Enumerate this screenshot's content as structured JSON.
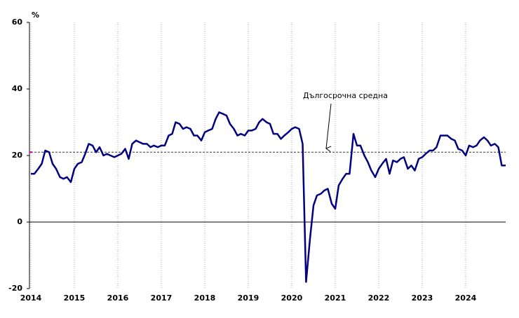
{
  "chart_data": {
    "type": "line",
    "y_label": "%",
    "color": "#000080",
    "x": [
      2014,
      2014.08,
      2014.17,
      2014.25,
      2014.33,
      2014.42,
      2014.5,
      2014.58,
      2014.67,
      2014.75,
      2014.83,
      2014.92,
      2015,
      2015.08,
      2015.17,
      2015.25,
      2015.33,
      2015.42,
      2015.5,
      2015.58,
      2015.67,
      2015.75,
      2015.83,
      2015.92,
      2016,
      2016.08,
      2016.17,
      2016.25,
      2016.33,
      2016.42,
      2016.5,
      2016.58,
      2016.67,
      2016.75,
      2016.83,
      2016.92,
      2017,
      2017.08,
      2017.17,
      2017.25,
      2017.33,
      2017.42,
      2017.5,
      2017.58,
      2017.67,
      2017.75,
      2017.83,
      2017.92,
      2018,
      2018.08,
      2018.17,
      2018.25,
      2018.33,
      2018.42,
      2018.5,
      2018.58,
      2018.67,
      2018.75,
      2018.83,
      2018.92,
      2019,
      2019.08,
      2019.17,
      2019.25,
      2019.33,
      2019.42,
      2019.5,
      2019.58,
      2019.67,
      2019.75,
      2019.83,
      2019.92,
      2020,
      2020.08,
      2020.17,
      2020.25,
      2020.33,
      2020.42,
      2020.5,
      2020.58,
      2020.67,
      2020.75,
      2020.83,
      2020.92,
      2021,
      2021.08,
      2021.17,
      2021.25,
      2021.33,
      2021.42,
      2021.5,
      2021.58,
      2021.67,
      2021.75,
      2021.83,
      2021.92,
      2022,
      2022.08,
      2022.17,
      2022.25,
      2022.33,
      2022.42,
      2022.5,
      2022.58,
      2022.67,
      2022.75,
      2022.83,
      2022.92,
      2023,
      2023.08,
      2023.17,
      2023.25,
      2023.33,
      2023.42,
      2023.5,
      2023.58,
      2023.67,
      2023.75,
      2023.83,
      2023.92,
      2024,
      2024.08,
      2024.17,
      2024.25,
      2024.33,
      2024.42,
      2024.5,
      2024.58,
      2024.67,
      2024.75,
      2024.83,
      2024.92
    ],
    "values": [
      14.5,
      14.5,
      16,
      17.5,
      21.5,
      21,
      17.5,
      16,
      13.5,
      13,
      13.5,
      12,
      16,
      17.5,
      18,
      20.5,
      23.5,
      23,
      21,
      22.5,
      20,
      20.5,
      20,
      19.5,
      20,
      20.5,
      22,
      19,
      23.5,
      24.5,
      24,
      23.5,
      23.5,
      22.5,
      23,
      22.5,
      23,
      23,
      26,
      26.5,
      30,
      29.5,
      28,
      28.5,
      28,
      26,
      26,
      24.5,
      27,
      27.5,
      28,
      31,
      33,
      32.5,
      32,
      29.5,
      28,
      26,
      26.5,
      26,
      27.5,
      27.5,
      28,
      30,
      31,
      30,
      29.5,
      26.5,
      26.5,
      25,
      26,
      27,
      28,
      28.5,
      28,
      23.5,
      -18,
      -5,
      5,
      8,
      8.5,
      9.5,
      10,
      5.5,
      4,
      11,
      13,
      14.5,
      14.5,
      26.5,
      23,
      23,
      20,
      18,
      15.5,
      13.5,
      16,
      17.5,
      19,
      14.5,
      18.5,
      18,
      19,
      19.5,
      16,
      17,
      15.5,
      19,
      19.5,
      20.5,
      21.5,
      21.5,
      22.5,
      26,
      26,
      26,
      25,
      24.5,
      22,
      21.5,
      20,
      23,
      22.5,
      23,
      24.5,
      25.5,
      24.5,
      23,
      23.5,
      22.5,
      17,
      17
    ],
    "reference_line": {
      "value": 21,
      "label": "Дългосрочна средна"
    },
    "xlim": [
      2014,
      2024.92
    ],
    "xticks": [
      2014,
      2015,
      2016,
      2017,
      2018,
      2019,
      2020,
      2021,
      2022,
      2023,
      2024
    ],
    "ylim": [
      -20,
      60
    ],
    "yticks": [
      -20,
      0,
      20,
      40,
      60
    ],
    "x_grid": true
  }
}
